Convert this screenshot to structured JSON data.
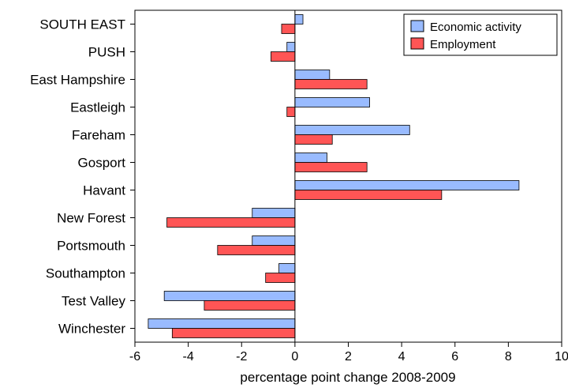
{
  "chart_data": {
    "type": "bar",
    "orientation": "horizontal",
    "title": "",
    "xlabel": "percentage point change 2008-2009",
    "ylabel": "",
    "xlim": [
      -6,
      10
    ],
    "xticks": [
      -6,
      -4,
      -2,
      0,
      2,
      4,
      6,
      8,
      10
    ],
    "grid": false,
    "legend_position": "top-right",
    "categories": [
      "SOUTH EAST",
      "PUSH",
      "East Hampshire",
      "Eastleigh",
      "Fareham",
      "Gosport",
      "Havant",
      "New Forest",
      "Portsmouth",
      "Southampton",
      "Test Valley",
      "Winchester"
    ],
    "series": [
      {
        "name": "Economic activity",
        "color": "#99bbff",
        "values": [
          0.3,
          -0.3,
          1.3,
          2.8,
          4.3,
          1.2,
          8.4,
          -1.6,
          -1.6,
          -0.6,
          -4.9,
          -5.5
        ]
      },
      {
        "name": "Employment",
        "color": "#ff5555",
        "values": [
          -0.5,
          -0.9,
          2.7,
          -0.3,
          1.4,
          2.7,
          5.5,
          -4.8,
          -2.9,
          -1.1,
          -3.4,
          -4.6
        ]
      }
    ]
  }
}
